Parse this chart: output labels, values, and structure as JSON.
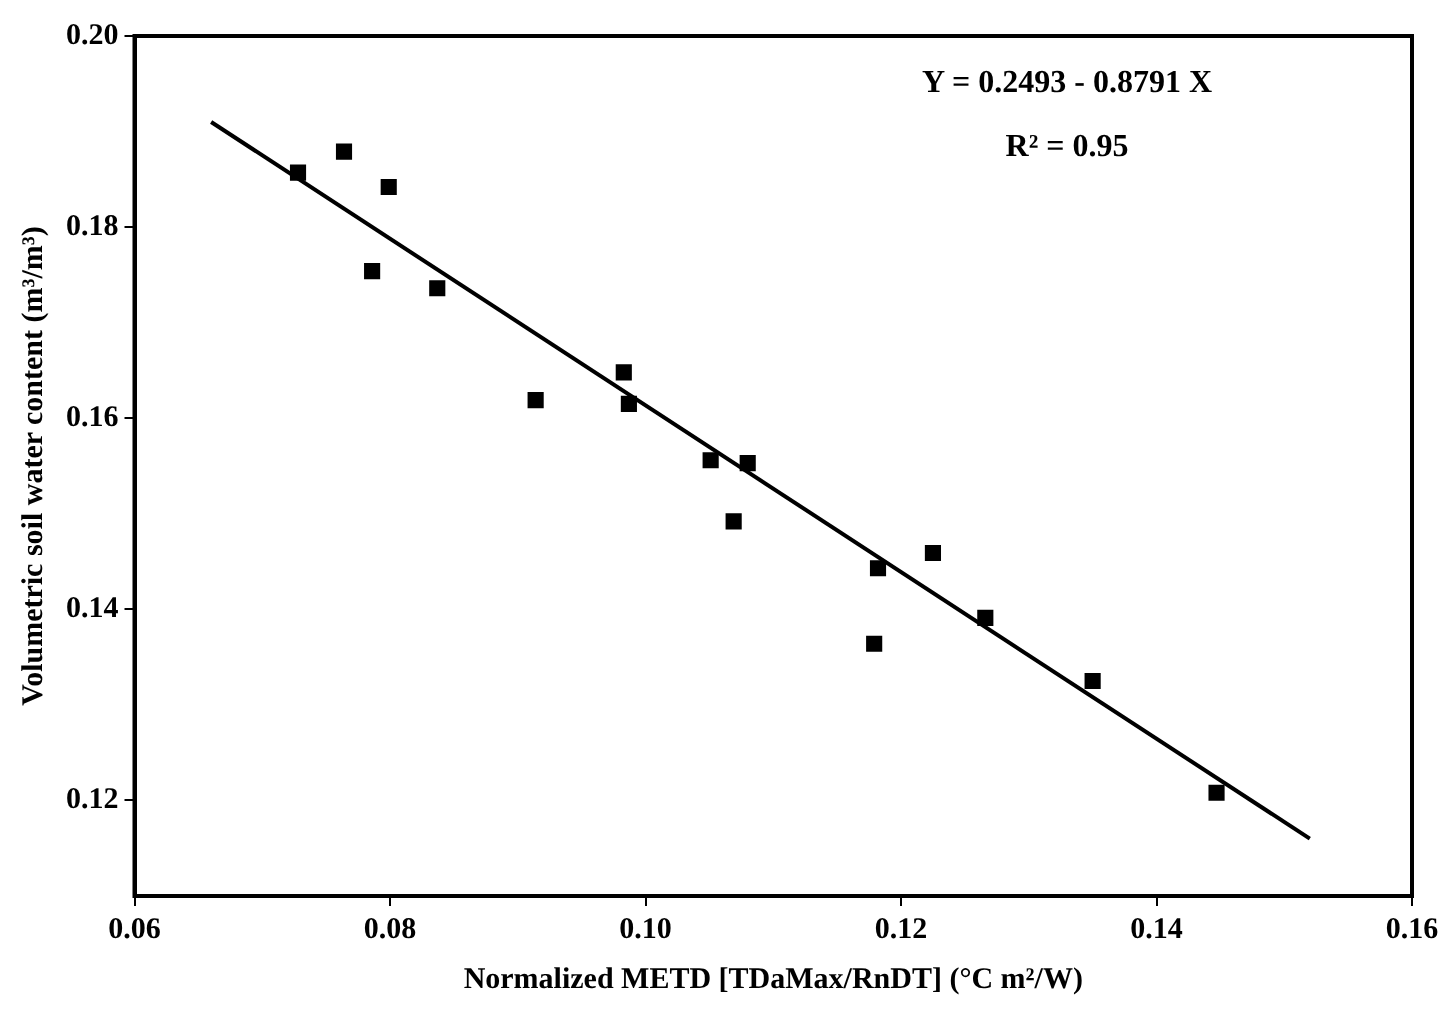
{
  "chart_data": {
    "type": "scatter",
    "xlabel": "Normalized METD [TDaMax/RnDT] (°C m²/W)",
    "ylabel": "Volumetric soil water content (m³/m³)",
    "annotations": [
      "Y = 0.2493 - 0.8791 X",
      "R² = 0.95"
    ],
    "xlim": [
      0.06,
      0.16
    ],
    "xticks": [
      {
        "value": 0.06,
        "label": "0.06"
      },
      {
        "value": 0.08,
        "label": "0.08"
      },
      {
        "value": 0.1,
        "label": "0.10"
      },
      {
        "value": 0.12,
        "label": "0.12"
      },
      {
        "value": 0.14,
        "label": "0.14"
      },
      {
        "value": 0.16,
        "label": "0.16"
      }
    ],
    "ylim": [
      0.11,
      0.2
    ],
    "yticks": [
      {
        "value": 0.12,
        "label": "0.12"
      },
      {
        "value": 0.14,
        "label": "0.14"
      },
      {
        "value": 0.16,
        "label": "0.16"
      },
      {
        "value": 0.18,
        "label": "0.18"
      },
      {
        "value": 0.2,
        "label": "0.20"
      }
    ],
    "grid": false,
    "legend": false,
    "marker": "square",
    "series": [
      {
        "color": "#000000",
        "x": [
          0.0728,
          0.0764,
          0.0799,
          0.0786,
          0.0837,
          0.0914,
          0.0983,
          0.0987,
          0.1051,
          0.108,
          0.1069,
          0.1182,
          0.1179,
          0.1225,
          0.1266,
          0.135,
          0.1447
        ],
        "values": [
          0.1857,
          0.1879,
          0.1842,
          0.1754,
          0.1736,
          0.1619,
          0.1648,
          0.1615,
          0.1556,
          0.1553,
          0.1492,
          0.1443,
          0.1364,
          0.1459,
          0.1391,
          0.1325,
          0.1208
        ]
      },
      {
        "type": "line",
        "color": "#000000",
        "marker": "none",
        "line_style": "solid",
        "x": [
          0.066,
          0.152
        ],
        "values": [
          0.191,
          0.116
        ]
      }
    ]
  }
}
